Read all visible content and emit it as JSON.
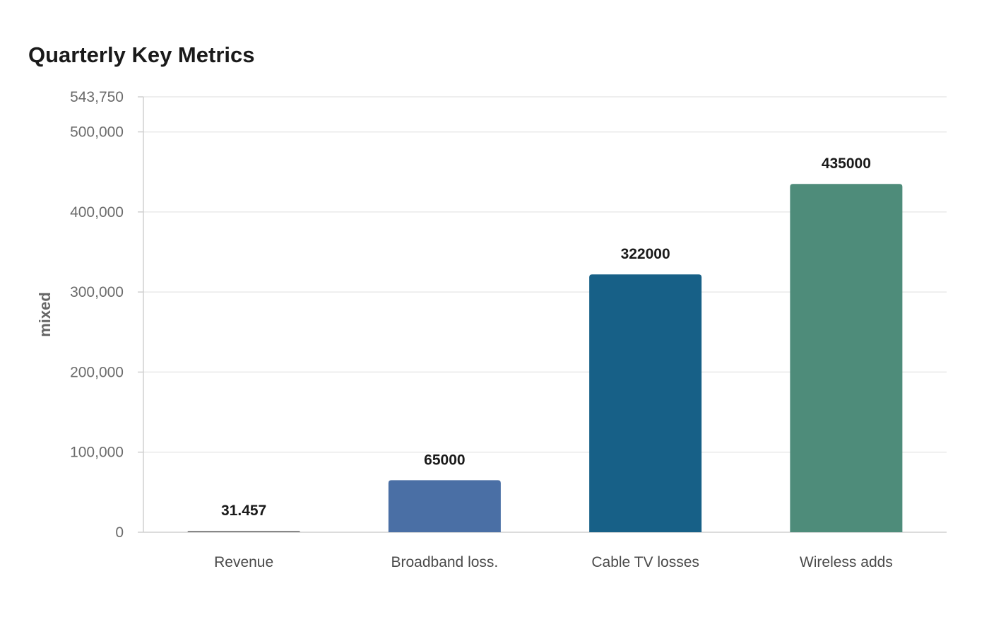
{
  "chart_data": {
    "type": "bar",
    "title": "Quarterly Key Metrics",
    "xlabel": "",
    "ylabel": "mixed",
    "ylim": [
      0,
      543750
    ],
    "grid": true,
    "categories": [
      "Revenue",
      "Broadband loss.",
      "Cable TV losses",
      "Wireless adds"
    ],
    "values": [
      31.457,
      65000,
      322000,
      435000
    ],
    "data_labels": [
      "31.457",
      "65000",
      "322000",
      "435000"
    ],
    "colors": [
      "#888888",
      "#4a6fa5",
      "#176087",
      "#4e8c7a"
    ],
    "y_ticks": [
      {
        "value": 0,
        "label": "0"
      },
      {
        "value": 100000,
        "label": "100,000"
      },
      {
        "value": 200000,
        "label": "200,000"
      },
      {
        "value": 300000,
        "label": "300,000"
      },
      {
        "value": 400000,
        "label": "400,000"
      },
      {
        "value": 500000,
        "label": "500,000"
      },
      {
        "value": 543750,
        "label": "543,750"
      }
    ]
  }
}
